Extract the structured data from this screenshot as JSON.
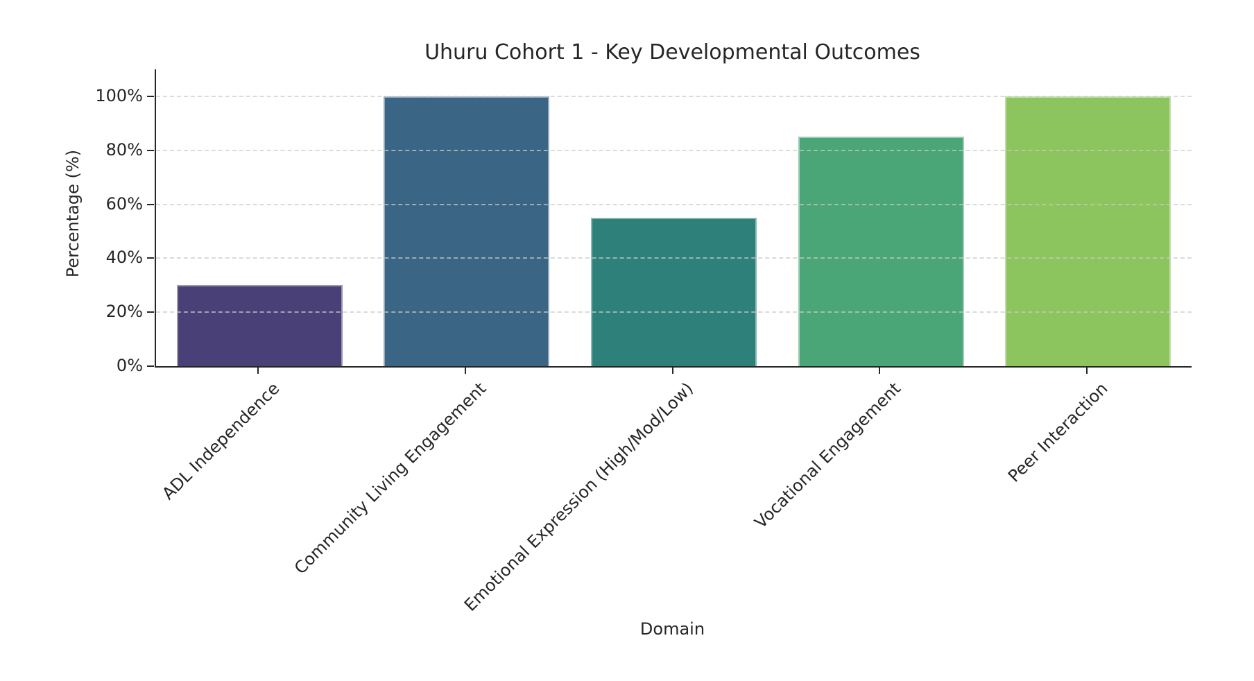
{
  "figure": {
    "background": "#ffffff",
    "axis_color": "#262626",
    "grid_color": "#cacaca",
    "text_color": "#262626"
  },
  "chart_data": {
    "type": "bar",
    "title": "Uhuru Cohort 1 - Key Developmental Outcomes",
    "xlabel": "Domain",
    "ylabel": "Percentage (%)",
    "categories": [
      "ADL Independence",
      "Community Living Engagement",
      "Emotional Expression (High/Mod/Low)",
      "Vocational Engagement",
      "Peer Interaction"
    ],
    "values": [
      30,
      100,
      55,
      85,
      100
    ],
    "bar_colors": [
      "#4a4078",
      "#3a6585",
      "#2e817a",
      "#4aa677",
      "#8cc45e"
    ],
    "yticks": [
      0,
      20,
      40,
      60,
      80,
      100
    ],
    "ytick_labels": [
      "0%",
      "20%",
      "40%",
      "60%",
      "80%",
      "100%"
    ],
    "ylim": [
      0,
      110
    ],
    "grid": "horizontal dashed at yticks, drawn above bars",
    "legend": "none",
    "x_tick_label_rotation_deg": 45
  }
}
